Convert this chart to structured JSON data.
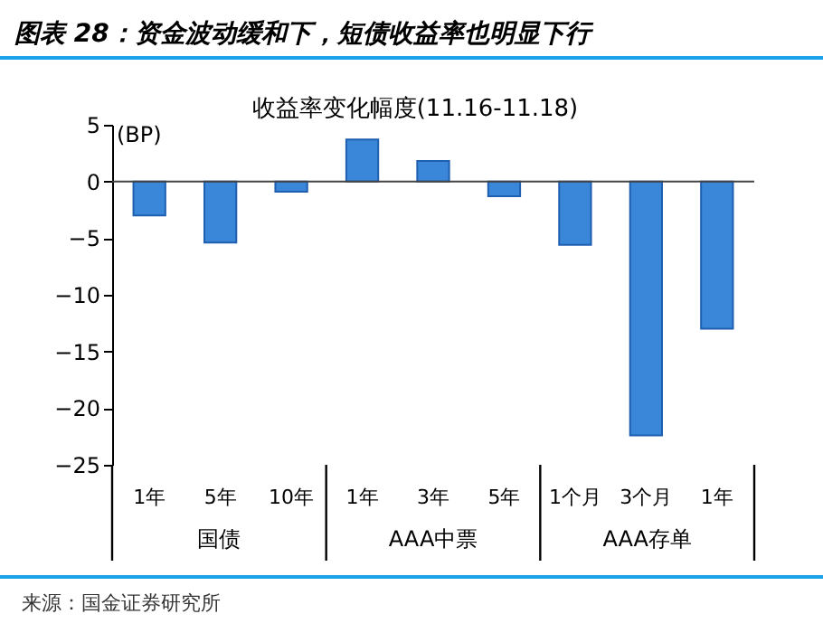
{
  "chart_data": {
    "type": "bar",
    "title": "图表 28：资金波动缓和下，短债收益率也明显下行",
    "subtitle": "收益率变化幅度(11.16-11.18)",
    "ylabel": "(BP)",
    "categories": [
      "1年",
      "5年",
      "10年",
      "1年",
      "3年",
      "5年",
      "1个月",
      "3个月",
      "1年"
    ],
    "values": [
      -3.0,
      -5.4,
      -0.9,
      3.7,
      1.8,
      -1.3,
      -5.6,
      -22.4,
      -13.0
    ],
    "color": "#3a86d9",
    "ylim": [
      -25,
      5
    ],
    "yticks": [
      -25,
      -20,
      -15,
      -10,
      -5,
      0,
      5
    ],
    "annotations": [
      "国债",
      "AAA中票",
      "AAA存单",
      "来源：国金证券研究所"
    ]
  }
}
